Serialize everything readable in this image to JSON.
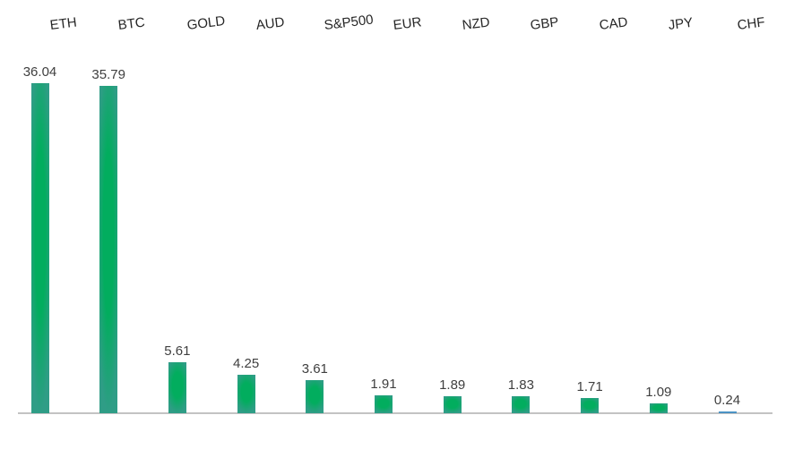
{
  "chart_data": {
    "type": "bar",
    "title": "",
    "xlabel": "",
    "ylabel": "",
    "categories": [
      "ETH",
      "BTC",
      "GOLD",
      "AUD",
      "S&P500",
      "EUR",
      "NZD",
      "GBP",
      "CAD",
      "JPY",
      "CHF"
    ],
    "values": [
      36.04,
      35.79,
      5.61,
      4.25,
      3.61,
      1.91,
      1.89,
      1.83,
      1.71,
      1.09,
      0.24
    ],
    "value_labels": [
      "36.04",
      "35.79",
      "5.61",
      "4.25",
      "3.61",
      "1.91",
      "1.89",
      "1.83",
      "1.71",
      "1.09",
      "0.24"
    ],
    "ylim": [
      0,
      36.04
    ],
    "grid": false,
    "legend": false,
    "y_axis_visible": false,
    "highlight_index": 10,
    "colors": {
      "bar_green_center": "#02ad5e",
      "bar_green_edge": "#2f9d86",
      "bar_blue_light": "#5aa0ce",
      "bar_blue_dark": "#3f87bc",
      "axis_line": "#c3c3c3",
      "value_text": "#3f3f3f",
      "category_text": "#262626",
      "background": "#ffffff"
    }
  }
}
